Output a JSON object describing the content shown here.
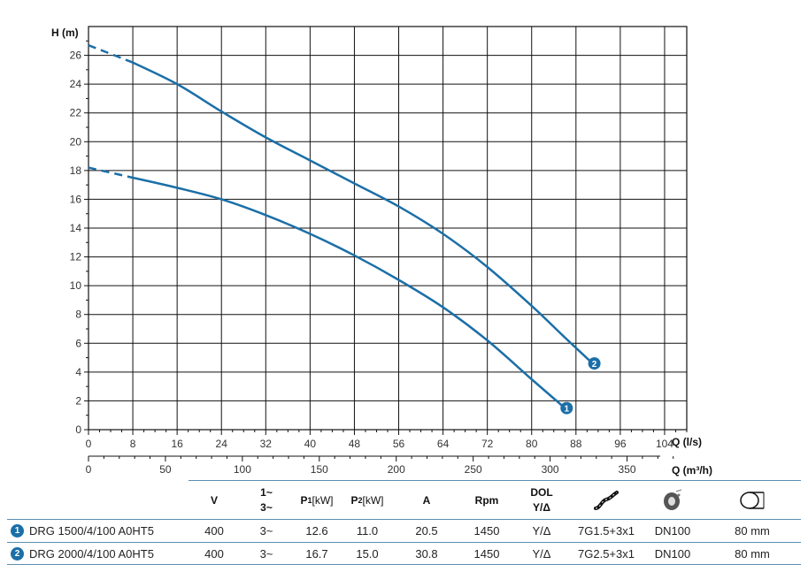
{
  "chart_data": {
    "type": "line",
    "y_axis_label": "H (m)",
    "x_axis_label": "Q (l/s)",
    "x2_axis_label": "Q (m³/h)",
    "xlim": [
      0,
      108
    ],
    "ylim": [
      0,
      28
    ],
    "x_ticks": [
      "0",
      "8",
      "16",
      "24",
      "32",
      "40",
      "48",
      "56",
      "64",
      "72",
      "80",
      "88",
      "96",
      "104"
    ],
    "y_ticks": [
      "0",
      "2",
      "4",
      "6",
      "8",
      "10",
      "12",
      "14",
      "16",
      "18",
      "20",
      "22",
      "24",
      "26"
    ],
    "x2_ticks": [
      "0",
      "50",
      "100",
      "150",
      "200",
      "250",
      "300",
      "350"
    ],
    "grid": true,
    "series": [
      {
        "label": "1",
        "x": [
          0,
          8,
          16,
          24,
          32,
          40,
          48,
          56,
          64,
          72,
          80,
          86
        ],
        "y": [
          18.2,
          17.5,
          16.8,
          16.0,
          14.9,
          13.6,
          12.1,
          10.4,
          8.5,
          6.2,
          3.5,
          1.5
        ],
        "dashed_until_x": 8
      },
      {
        "label": "2",
        "x": [
          0,
          8,
          16,
          24,
          32,
          40,
          48,
          56,
          64,
          72,
          80,
          86,
          91
        ],
        "y": [
          26.7,
          25.5,
          24.0,
          22.1,
          20.3,
          18.7,
          17.1,
          15.5,
          13.6,
          11.3,
          8.6,
          6.4,
          4.6
        ],
        "dashed_until_x": 7
      }
    ],
    "colors": {
      "curve": "#1b6fa8",
      "grid": "#111111"
    }
  },
  "spec_table": {
    "headers": {
      "v": "V",
      "phase_top": "1~",
      "phase_bottom": "3~",
      "p1": "P",
      "p1_sub": "1",
      "p1_unit": " [kW]",
      "p2": "P",
      "p2_sub": "2",
      "p2_unit": " [kW]",
      "a": "A",
      "rpm": "Rpm",
      "dol_top": "DOL",
      "dol_bottom": "Y/Δ"
    },
    "header_icons": [
      "cable-icon",
      "flange-icon",
      "pipe-diameter-icon"
    ],
    "rows": [
      {
        "num": "1",
        "model": "DRG 1500/4/100 A0HT5",
        "v": "400",
        "phase": "3~",
        "p1": "12.6",
        "p2": "11.0",
        "a": "20.5",
        "rpm": "1450",
        "start": "Y/Δ",
        "cable": "7G1.5+3x1",
        "flange": "DN100",
        "outlet": "80 mm"
      },
      {
        "num": "2",
        "model": "DRG 2000/4/100 A0HT5",
        "v": "400",
        "phase": "3~",
        "p1": "16.7",
        "p2": "15.0",
        "a": "30.8",
        "rpm": "1450",
        "start": "Y/Δ",
        "cable": "7G2.5+3x1",
        "flange": "DN100",
        "outlet": "80 mm"
      }
    ]
  }
}
